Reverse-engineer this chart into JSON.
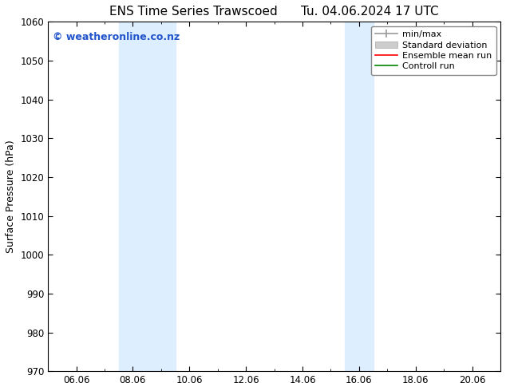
{
  "title_left": "ENS Time Series Trawscoed",
  "title_right": "Tu. 04.06.2024 17 UTC",
  "ylabel": "Surface Pressure (hPa)",
  "ylim": [
    970,
    1060
  ],
  "yticks": [
    970,
    980,
    990,
    1000,
    1010,
    1020,
    1030,
    1040,
    1050,
    1060
  ],
  "xtick_labels": [
    "06.06",
    "08.06",
    "10.06",
    "12.06",
    "14.06",
    "16.06",
    "18.06",
    "20.06"
  ],
  "xtick_positions": [
    2,
    4,
    6,
    8,
    10,
    12,
    14,
    16
  ],
  "xlim": [
    1,
    17
  ],
  "shaded_bands": [
    {
      "x_start": 3.5,
      "x_end": 5.5
    },
    {
      "x_start": 11.5,
      "x_end": 12.5
    }
  ],
  "shaded_color": "#ddeeff",
  "background_color": "#ffffff",
  "watermark_text": "© weatheronline.co.nz",
  "watermark_color": "#2255cc",
  "legend_entries": [
    {
      "label": "min/max",
      "color": "#999999",
      "lw": 1.2
    },
    {
      "label": "Standard deviation",
      "color": "#cccccc",
      "lw": 5
    },
    {
      "label": "Ensemble mean run",
      "color": "#ff0000",
      "lw": 1.2
    },
    {
      "label": "Controll run",
      "color": "#008800",
      "lw": 1.2
    }
  ],
  "title_fontsize": 11,
  "label_fontsize": 9,
  "tick_fontsize": 8.5,
  "legend_fontsize": 8
}
